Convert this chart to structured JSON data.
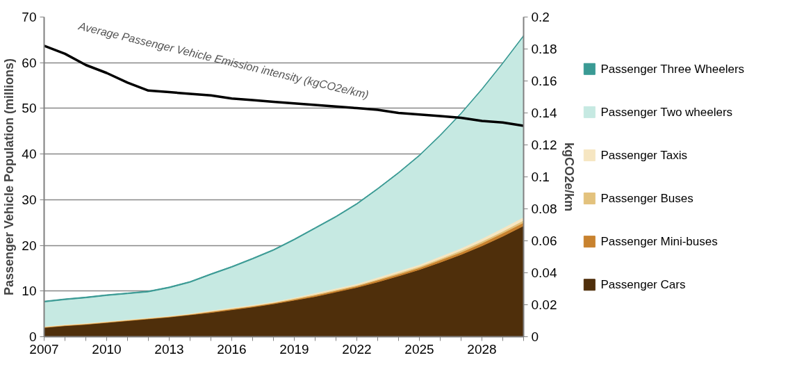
{
  "chart_data": {
    "type": "area",
    "stacked": true,
    "ylabel": "Passenger Vehicle Population (millions)",
    "y2label": "kgCO2e/km",
    "x": [
      2007,
      2008,
      2009,
      2010,
      2011,
      2012,
      2013,
      2014,
      2015,
      2016,
      2017,
      2018,
      2019,
      2020,
      2021,
      2022,
      2023,
      2024,
      2025,
      2026,
      2027,
      2028,
      2029,
      2030
    ],
    "series": [
      {
        "name": "Passenger Cars",
        "color": "#4f2f0b",
        "values": [
          2.0,
          2.4,
          2.7,
          3.1,
          3.5,
          3.9,
          4.3,
          4.8,
          5.3,
          5.9,
          6.5,
          7.2,
          8.0,
          8.8,
          9.8,
          10.8,
          12.0,
          13.3,
          14.7,
          16.3,
          18.0,
          19.9,
          22.0,
          24.3
        ]
      },
      {
        "name": "Passenger Mini-buses",
        "color": "#c8822f",
        "values": [
          0.1,
          0.1,
          0.1,
          0.1,
          0.1,
          0.1,
          0.1,
          0.1,
          0.2,
          0.2,
          0.2,
          0.2,
          0.2,
          0.3,
          0.3,
          0.3,
          0.4,
          0.4,
          0.4,
          0.5,
          0.5,
          0.6,
          0.7,
          0.7
        ]
      },
      {
        "name": "Passenger Buses",
        "color": "#e3c27d",
        "values": [
          0.1,
          0.1,
          0.1,
          0.1,
          0.1,
          0.1,
          0.1,
          0.1,
          0.1,
          0.1,
          0.1,
          0.1,
          0.2,
          0.2,
          0.2,
          0.2,
          0.2,
          0.3,
          0.3,
          0.3,
          0.4,
          0.4,
          0.4,
          0.5
        ]
      },
      {
        "name": "Passenger Taxis",
        "color": "#f6e6c2",
        "values": [
          0.1,
          0.1,
          0.1,
          0.1,
          0.1,
          0.1,
          0.1,
          0.1,
          0.2,
          0.2,
          0.2,
          0.2,
          0.2,
          0.3,
          0.3,
          0.3,
          0.4,
          0.4,
          0.4,
          0.5,
          0.5,
          0.6,
          0.7,
          0.7
        ]
      },
      {
        "name": "Passenger Two wheelers",
        "color": "#c6e9e2",
        "values": [
          5.3,
          5.4,
          5.5,
          5.6,
          5.6,
          5.6,
          6.1,
          6.8,
          7.8,
          8.8,
          10.0,
          11.2,
          12.6,
          14.1,
          15.6,
          17.4,
          19.3,
          21.4,
          23.8,
          26.4,
          29.4,
          32.6,
          36.0,
          39.6
        ]
      },
      {
        "name": "Passenger Three Wheelers",
        "color": "#3a9a94",
        "values": [
          0.2,
          0.2,
          0.2,
          0.2,
          0.2,
          0.2,
          0.2,
          0.2,
          0.2,
          0.2,
          0.2,
          0.2,
          0.2,
          0.2,
          0.2,
          0.2,
          0.2,
          0.2,
          0.2,
          0.2,
          0.2,
          0.2,
          0.2,
          0.2
        ]
      },
      {
        "name": "Average Passenger Vehicle Emission intensity (kgCO2e/km)",
        "type": "line",
        "axis": "y2",
        "color": "#000000",
        "values": [
          0.182,
          0.177,
          0.17,
          0.165,
          0.159,
          0.154,
          0.153,
          0.152,
          0.151,
          0.149,
          0.148,
          0.147,
          0.146,
          0.145,
          0.144,
          0.143,
          0.142,
          0.14,
          0.139,
          0.138,
          0.137,
          0.135,
          0.134,
          0.132
        ]
      }
    ],
    "xlim": [
      2007,
      2030
    ],
    "ylim": [
      0,
      70
    ],
    "y2lim": [
      0,
      0.2
    ],
    "xticks": [
      2007,
      {
        "value": 2008,
        "label": null
      },
      {
        "value": 2009,
        "label": null
      },
      2010,
      {
        "value": 2011,
        "label": null
      },
      {
        "value": 2012,
        "label": null
      },
      2013,
      {
        "value": 2014,
        "label": null
      },
      {
        "value": 2015,
        "label": null
      },
      2016,
      {
        "value": 2017,
        "label": null
      },
      {
        "value": 2018,
        "label": null
      },
      2019,
      {
        "value": 2020,
        "label": null
      },
      {
        "value": 2021,
        "label": null
      },
      2022,
      {
        "value": 2023,
        "label": null
      },
      {
        "value": 2024,
        "label": null
      },
      2025,
      {
        "value": 2026,
        "label": null
      },
      {
        "value": 2027,
        "label": null
      },
      2028,
      {
        "value": 2029,
        "label": null
      },
      {
        "value": 2030,
        "label": null
      }
    ],
    "yticks": [
      0,
      10,
      20,
      30,
      40,
      50,
      60,
      70
    ],
    "y2ticks": [
      0,
      0.02,
      0.04,
      0.06,
      0.08,
      0.1,
      0.12,
      0.14,
      0.16,
      0.18,
      0.2
    ],
    "grid": "y",
    "legend": "right"
  }
}
